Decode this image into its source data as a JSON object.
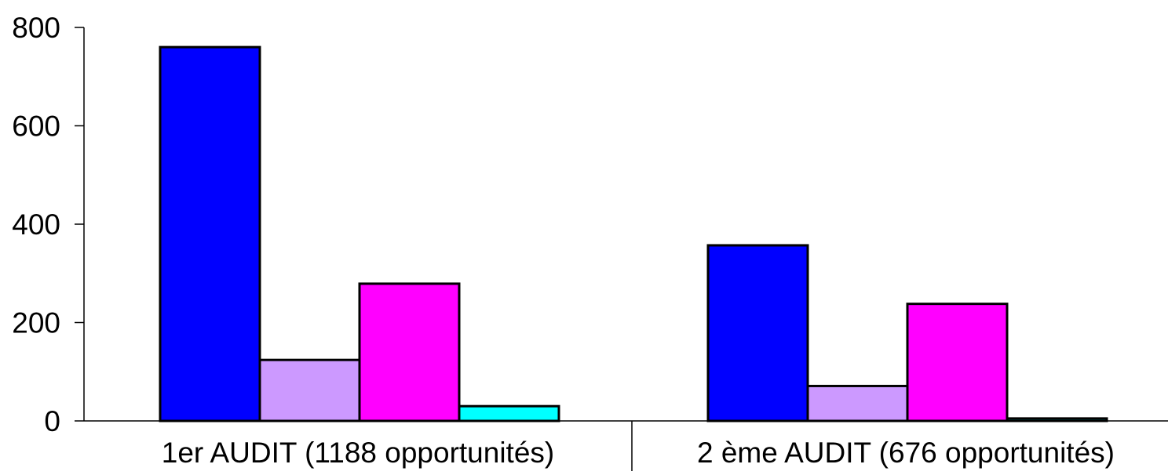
{
  "chart_data": {
    "type": "bar",
    "title": "",
    "xlabel": "",
    "ylabel": "",
    "categories": [
      "1er AUDIT  (1188 opportunités)",
      "2 ème AUDIT (676 opportunités)"
    ],
    "series": [
      {
        "color": "#0000FF",
        "values": [
          760,
          357
        ]
      },
      {
        "color": "#CC99FF",
        "values": [
          124,
          71
        ]
      },
      {
        "color": "#FF00FF",
        "values": [
          279,
          238
        ]
      },
      {
        "color": "#00FFFF",
        "values": [
          30,
          5
        ]
      }
    ],
    "ylim": [
      0,
      800
    ],
    "yticks": [
      "0",
      "200",
      "400",
      "600",
      "800"
    ],
    "grid": false,
    "legend": "none",
    "bar_outline_color": "#000000"
  }
}
